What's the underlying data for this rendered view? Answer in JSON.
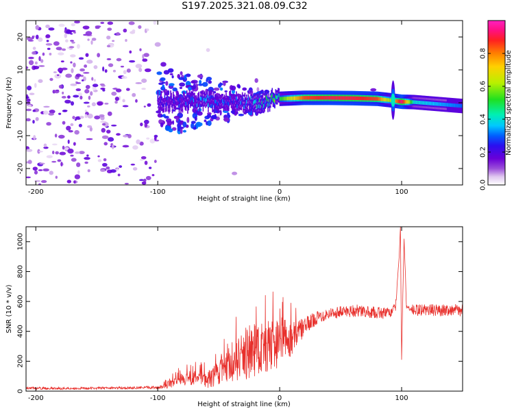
{
  "title": "S197.2025.321.08.09.C32",
  "chart_data": [
    {
      "type": "heatmap",
      "title": "S197.2025.321.08.09.C32",
      "xlabel": "Height of straight line (km)",
      "ylabel": "Frequency (Hz)",
      "xlim": [
        -208,
        150
      ],
      "ylim": [
        -25,
        25
      ],
      "xticks": [
        -200,
        -100,
        0,
        100
      ],
      "yticks": [
        -20,
        -10,
        0,
        10,
        20
      ],
      "colorbar": {
        "label": "Normalized spectral amplitude",
        "range": [
          0,
          1
        ],
        "ticks": [
          "0.0",
          "0.2",
          "0.4",
          "0.6",
          "0.8"
        ],
        "tick_values": [
          0,
          0.2,
          0.4,
          0.6,
          0.8
        ],
        "colormap": [
          "#ffffff",
          "#e0c8f0",
          "#9b4fd9",
          "#6a00d8",
          "#2a10f0",
          "#0060ff",
          "#00c8ff",
          "#00f0b0",
          "#20e020",
          "#b8f000",
          "#ffd000",
          "#ff8000",
          "#ff2020",
          "#ff1080",
          "#ff20c0"
        ]
      },
      "ridge": {
        "description": "main signal ridge",
        "x": [
          -100,
          -80,
          -60,
          -40,
          -20,
          0,
          20,
          40,
          60,
          80,
          90,
          100,
          110,
          130,
          150
        ],
        "freq": [
          0.5,
          0.2,
          0.5,
          0.3,
          0.0,
          1.2,
          1.5,
          1.5,
          1.4,
          1.2,
          0.8,
          0.3,
          0.2,
          -0.4,
          -1.0
        ],
        "amplitude": [
          0.2,
          0.25,
          0.3,
          0.25,
          0.35,
          0.5,
          0.85,
          0.9,
          0.9,
          0.85,
          0.6,
          0.95,
          0.4,
          0.35,
          0.3
        ]
      }
    },
    {
      "type": "line",
      "xlabel": "Height of straight line (km)",
      "ylabel": "SNR (10 * v/v)",
      "xlim": [
        -208,
        150
      ],
      "ylim": [
        0,
        1100
      ],
      "xticks": [
        -200,
        -100,
        0,
        100
      ],
      "yticks": [
        0,
        200,
        400,
        600,
        800,
        1000
      ],
      "series": [
        {
          "name": "SNR",
          "color": "#e8302c",
          "x": [
            -208,
            -180,
            -150,
            -120,
            -100,
            -90,
            -80,
            -70,
            -60,
            -50,
            -40,
            -30,
            -20,
            -10,
            0,
            10,
            20,
            30,
            40,
            50,
            60,
            70,
            80,
            90,
            95,
            98,
            99,
            100,
            101,
            102,
            104,
            110,
            120,
            130,
            140,
            150
          ],
          "y": [
            20,
            18,
            20,
            22,
            25,
            45,
            80,
            90,
            70,
            120,
            180,
            230,
            280,
            300,
            330,
            350,
            430,
            490,
            520,
            530,
            540,
            530,
            525,
            520,
            560,
            900,
            1100,
            210,
            650,
            1020,
            560,
            540,
            545,
            540,
            545,
            540
          ],
          "noise_amplitude": [
            8,
            8,
            8,
            8,
            10,
            25,
            45,
            50,
            55,
            80,
            130,
            160,
            180,
            180,
            170,
            110,
            60,
            45,
            40,
            40,
            45,
            40,
            40,
            40,
            30,
            0,
            0,
            0,
            0,
            0,
            30,
            40,
            40,
            40,
            40,
            40
          ]
        }
      ]
    }
  ]
}
